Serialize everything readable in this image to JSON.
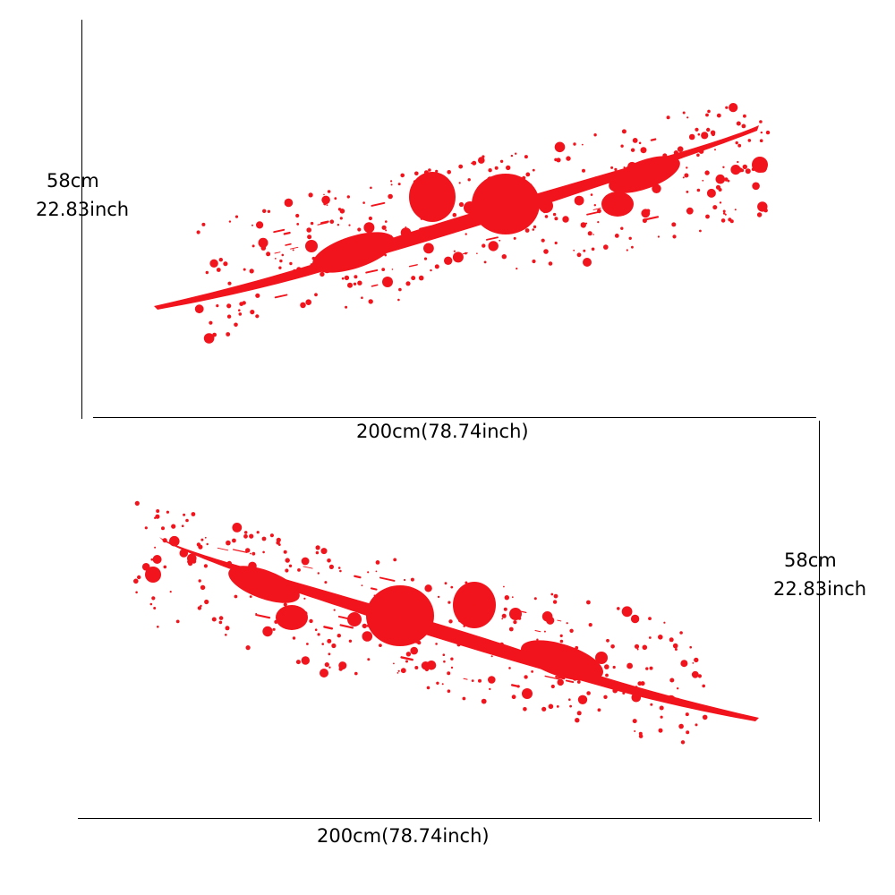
{
  "colors": {
    "splatter": "#f2141c",
    "lines": "#000000",
    "background": "#ffffff"
  },
  "panels": [
    {
      "height_label_cm": "58cm",
      "height_label_inch": "22.83inch",
      "width_label": "200cm(78.74inch)"
    },
    {
      "height_label_cm": "58cm",
      "height_label_inch": "22.83inch",
      "width_label": "200cm(78.74inch)"
    }
  ]
}
